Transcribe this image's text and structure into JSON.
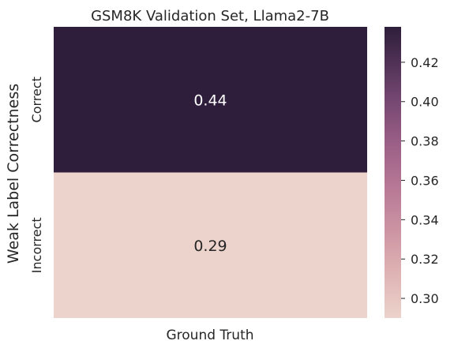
{
  "chart_data": {
    "type": "heatmap",
    "title": "GSM8K Validation Set, Llama2-7B",
    "xlabel": "Ground Truth",
    "ylabel": "Weak Label Correctness",
    "rows": [
      "Correct",
      "Incorrect"
    ],
    "columns": [
      ""
    ],
    "values": [
      [
        0.44
      ],
      [
        0.29
      ]
    ],
    "value_labels": [
      "0.44",
      "0.29"
    ],
    "colorbar": {
      "min": 0.29,
      "max": 0.438,
      "ticks": [
        0.3,
        0.32,
        0.34,
        0.36,
        0.38,
        0.4,
        0.42
      ],
      "tick_labels": [
        "0.30",
        "0.32",
        "0.34",
        "0.36",
        "0.38",
        "0.40",
        "0.42"
      ],
      "colormap": "cubehelix-light-to-dark",
      "low_color": "#ecd3cb",
      "high_color": "#2e1e3b"
    },
    "grid": false
  }
}
